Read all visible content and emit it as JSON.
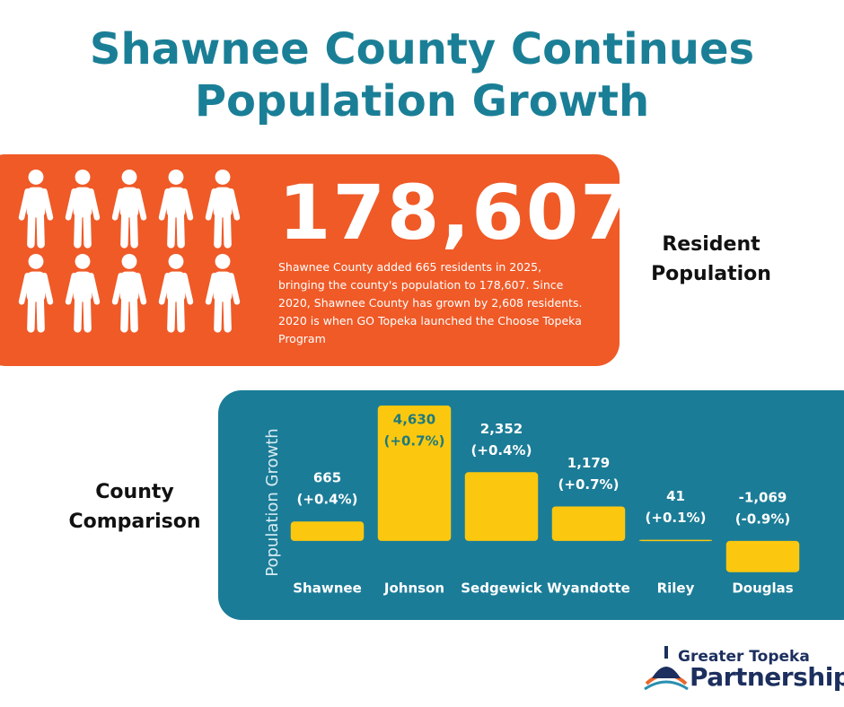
{
  "title_lines": [
    "Shawnee County Continues",
    "Population Growth"
  ],
  "headline": "178,607",
  "description": "Shawnee County added 665 residents in 2025, bringing the county's population to 178,607. Since 2020, Shawnee County has grown by 2,608 residents. 2020 is when GO Topeka launched the Choose Topeka Program",
  "resident_label": "Resident Population",
  "comparison_label": "County Comparison",
  "logo": {
    "line1": "Greater Topeka",
    "line2": "Partnership"
  },
  "chart_data": {
    "type": "bar",
    "y_label": "Population Growth",
    "categories": [
      "Shawnee",
      "Johnson",
      "Sedgewick",
      "Wyandotte",
      "Riley",
      "Douglas"
    ],
    "values": [
      665,
      4630,
      2352,
      1179,
      41,
      -1069
    ],
    "value_labels": [
      "665",
      "4,630",
      "2,352",
      "1,179",
      "41",
      "-1,069"
    ],
    "pct_labels": [
      "(+0.4%)",
      "(+0.7%)",
      "(+0.4%)",
      "(+0.7%)",
      "(+0.1%)",
      "(-0.9%)"
    ],
    "color": "#fbc80f",
    "ylim": [
      -1200,
      5000
    ]
  }
}
